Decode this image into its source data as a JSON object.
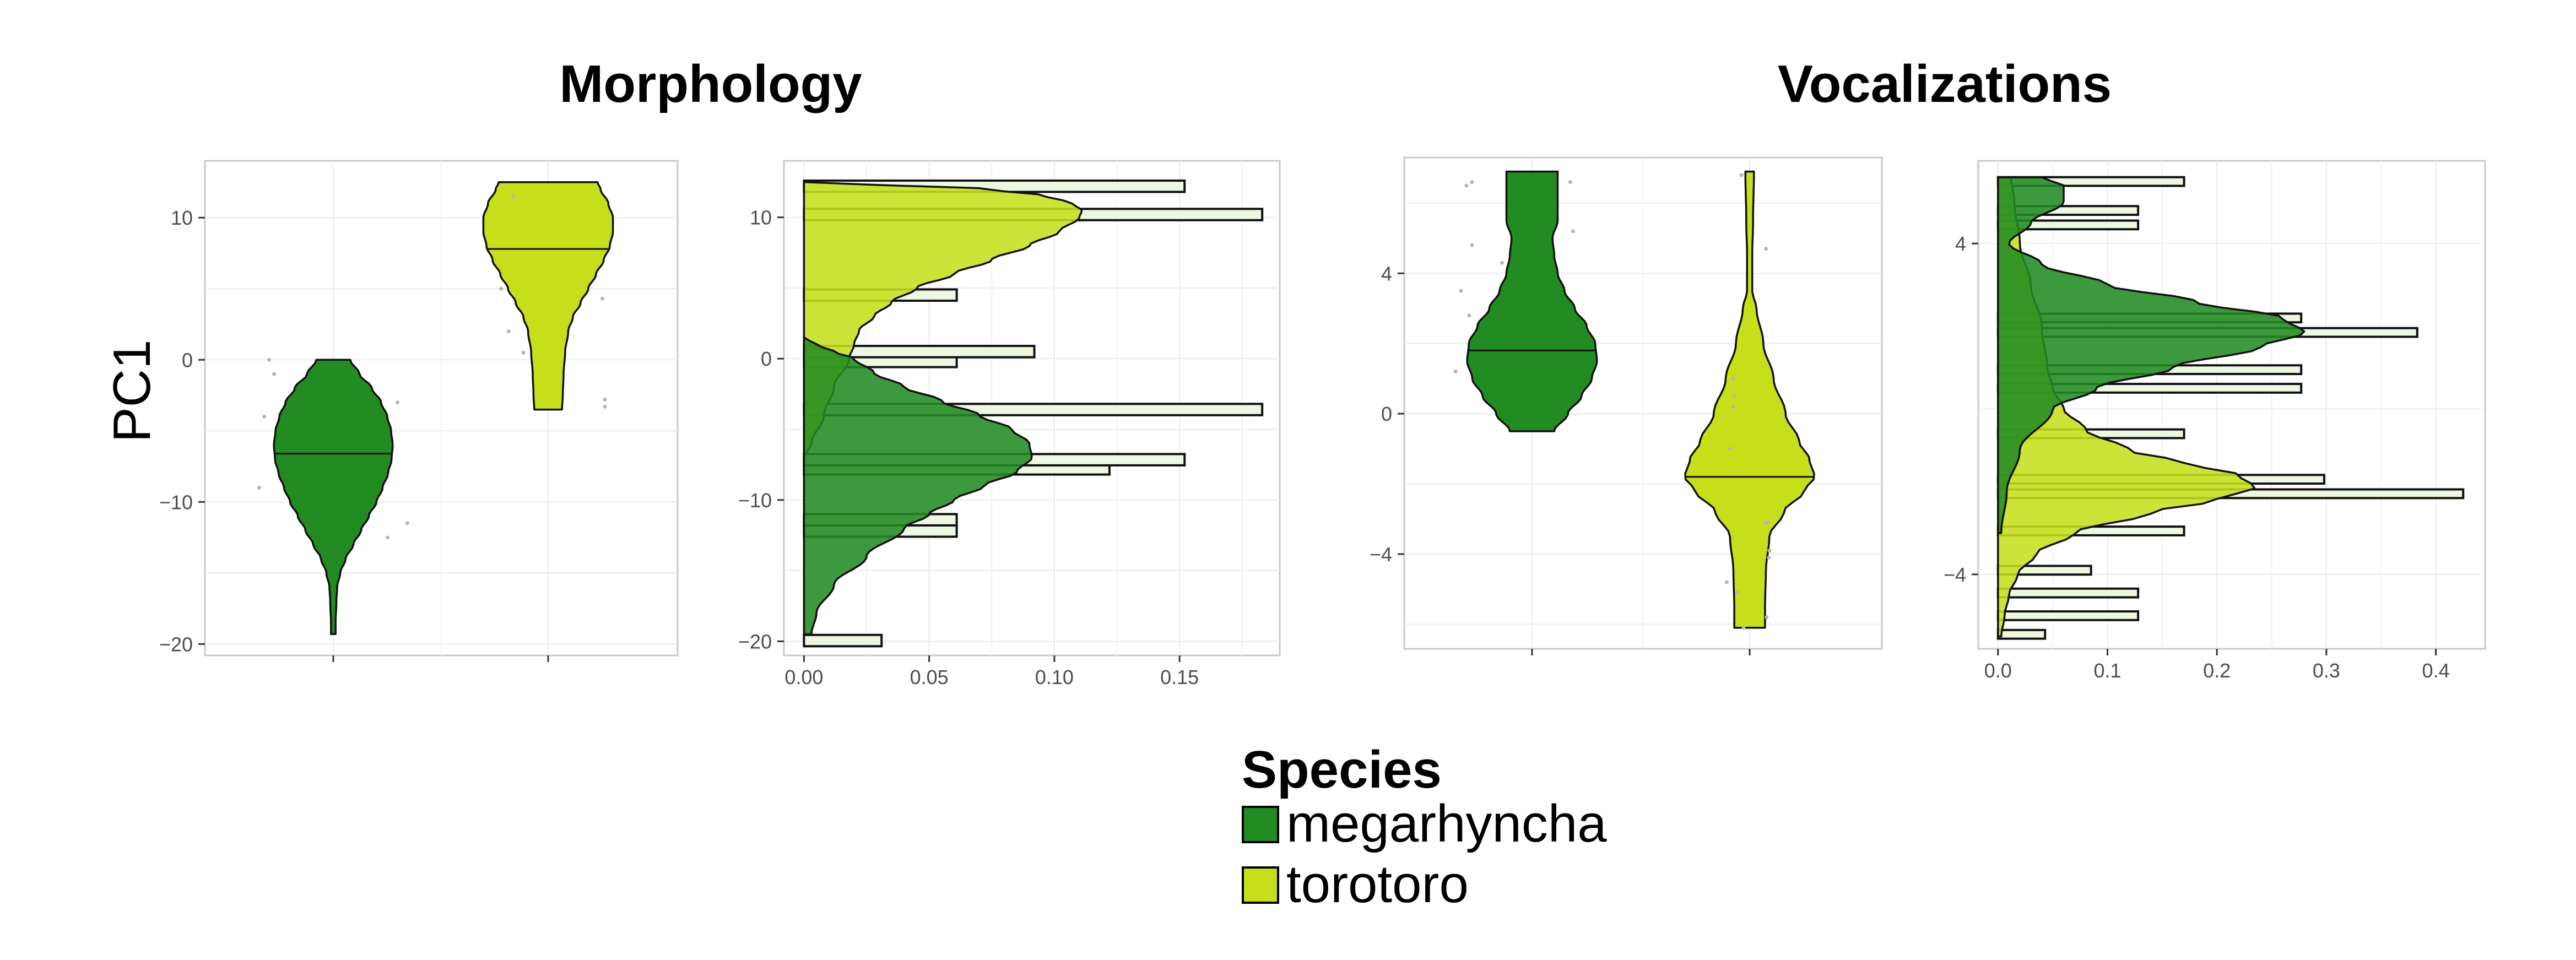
{
  "panel_titles": {
    "morphology": "Morphology",
    "vocalizations": "Vocalizations"
  },
  "y_label": "PC1",
  "legend": {
    "title": "Species",
    "items": [
      {
        "label": "megarhyncha",
        "color": "#228B22"
      },
      {
        "label": "torotoro",
        "color": "#C5E01B"
      }
    ]
  },
  "chart_data": [
    {
      "type": "violin",
      "panel": "Morphology",
      "ylabel": "PC1",
      "ylim": [
        -20.8,
        14
      ],
      "yticks": [
        -20,
        -10,
        0,
        10
      ],
      "ytick_labels": [
        "−20",
        "−10",
        "0",
        "10"
      ],
      "grid": true,
      "series": [
        {
          "name": "megarhyncha",
          "color": "#228B22",
          "median": -6.6,
          "range": [
            -19.3,
            0
          ],
          "profile": [
            [
              -19.3,
              0.15
            ],
            [
              -18.5,
              0.15
            ],
            [
              -17,
              0.2
            ],
            [
              -16,
              0.25
            ],
            [
              -15,
              0.45
            ],
            [
              -14,
              0.8
            ],
            [
              -13,
              1.3
            ],
            [
              -12,
              1.8
            ],
            [
              -11,
              2.3
            ],
            [
              -10,
              2.8
            ],
            [
              -9,
              3.2
            ],
            [
              -8,
              3.55
            ],
            [
              -7,
              3.78
            ],
            [
              -6,
              3.85
            ],
            [
              -5,
              3.75
            ],
            [
              -4,
              3.5
            ],
            [
              -3,
              3.1
            ],
            [
              -2,
              2.5
            ],
            [
              -1,
              1.7
            ],
            [
              0,
              1.1
            ]
          ],
          "points": [
            [
              -9,
              -1.5
            ],
            [
              -4,
              -1.4
            ],
            [
              -1,
              -1.2
            ],
            [
              0,
              -1.3
            ],
            [
              -12.5,
              1.1
            ],
            [
              -11.5,
              1.5
            ],
            [
              -3,
              1.3
            ]
          ]
        },
        {
          "name": "torotoro",
          "color": "#C5E01B",
          "median": 7.8,
          "range": [
            -3.5,
            12.5
          ],
          "profile": [
            [
              -3.5,
              0.9
            ],
            [
              -2.5,
              0.95
            ],
            [
              -1,
              1.0
            ],
            [
              0.5,
              1.1
            ],
            [
              2,
              1.3
            ],
            [
              3,
              1.6
            ],
            [
              4,
              2.1
            ],
            [
              5,
              2.6
            ],
            [
              6,
              3.1
            ],
            [
              7,
              3.6
            ],
            [
              8,
              4.0
            ],
            [
              9,
              4.2
            ],
            [
              10,
              4.2
            ],
            [
              11,
              3.9
            ],
            [
              12,
              3.4
            ],
            [
              12.5,
              3.2
            ]
          ],
          "points": [
            [
              5,
              -0.95
            ],
            [
              2,
              -0.8
            ],
            [
              0.5,
              -0.5
            ],
            [
              11.5,
              -0.7
            ],
            [
              4.3,
              1.1
            ],
            [
              -2.8,
              1.15
            ],
            [
              -3.3,
              1.15
            ]
          ]
        }
      ]
    },
    {
      "type": "density-histogram",
      "panel": "Morphology",
      "xlim": [
        -0.008,
        0.19
      ],
      "xticks": [
        0,
        0.05,
        0.1,
        0.15
      ],
      "xtick_labels": [
        "0.00",
        "0.05",
        "0.10",
        "0.15"
      ],
      "ylim": [
        -21,
        14
      ],
      "yticks": [
        -20,
        -10,
        0,
        10
      ],
      "ytick_labels": [
        "−20",
        "−10",
        "0",
        "10"
      ],
      "grid": true,
      "bin_width": 0.8,
      "bars": [
        [
          -19.95,
          0.031
        ],
        [
          -12.2,
          0.061
        ],
        [
          -11.4,
          0.061
        ],
        [
          -7.8,
          0.122
        ],
        [
          -7.15,
          0.152
        ],
        [
          -3.6,
          0.183
        ],
        [
          -0.2,
          0.061
        ],
        [
          0.5,
          0.092
        ],
        [
          4.5,
          0.061
        ],
        [
          10.2,
          0.183
        ],
        [
          12.2,
          0.152
        ]
      ],
      "densities": [
        {
          "name": "torotoro",
          "color": "#C5E01B",
          "points": [
            [
              -7,
              0
            ],
            [
              -6,
              0.003
            ],
            [
              -4,
              0.008
            ],
            [
              -2,
              0.012
            ],
            [
              0,
              0.018
            ],
            [
              1,
              0.02
            ],
            [
              2,
              0.022
            ],
            [
              3,
              0.028
            ],
            [
              4,
              0.035
            ],
            [
              5,
              0.045
            ],
            [
              6,
              0.06
            ],
            [
              7,
              0.075
            ],
            [
              8,
              0.09
            ],
            [
              9,
              0.102
            ],
            [
              10,
              0.11
            ],
            [
              10.5,
              0.111
            ],
            [
              11,
              0.107
            ],
            [
              11.5,
              0.097
            ],
            [
              12,
              0.075
            ],
            [
              12.3,
              0.03
            ],
            [
              12.5,
              0
            ]
          ]
        },
        {
          "name": "megarhyncha",
          "color": "#228B22",
          "points": [
            [
              -19.5,
              0.003
            ],
            [
              -18,
              0.005
            ],
            [
              -16,
              0.012
            ],
            [
              -14,
              0.025
            ],
            [
              -12,
              0.04
            ],
            [
              -11,
              0.05
            ],
            [
              -10,
              0.06
            ],
            [
              -9,
              0.072
            ],
            [
              -8,
              0.085
            ],
            [
              -7,
              0.091
            ],
            [
              -6,
              0.09
            ],
            [
              -5,
              0.083
            ],
            [
              -4,
              0.07
            ],
            [
              -3,
              0.055
            ],
            [
              -2,
              0.04
            ],
            [
              -1,
              0.028
            ],
            [
              0,
              0.02
            ],
            [
              0.5,
              0.012
            ],
            [
              1,
              0.005
            ],
            [
              1.5,
              0
            ]
          ]
        }
      ]
    },
    {
      "type": "violin",
      "panel": "Vocalizations",
      "ylim": [
        -6.7,
        7.3
      ],
      "yticks": [
        -4,
        0,
        4
      ],
      "ytick_labels": [
        "−4",
        "0",
        "4"
      ],
      "grid": true,
      "series": [
        {
          "name": "megarhyncha",
          "color": "#228B22",
          "median": 1.8,
          "range": [
            -0.5,
            6.9
          ],
          "profile": [
            [
              -0.5,
              1.3
            ],
            [
              0,
              2.1
            ],
            [
              0.5,
              2.9
            ],
            [
              1,
              3.5
            ],
            [
              1.5,
              3.8
            ],
            [
              2,
              3.7
            ],
            [
              2.5,
              3.2
            ],
            [
              3,
              2.5
            ],
            [
              3.5,
              1.9
            ],
            [
              4,
              1.5
            ],
            [
              4.5,
              1.3
            ],
            [
              5,
              1.2
            ],
            [
              5.5,
              1.5
            ],
            [
              6,
              1.5
            ],
            [
              6.5,
              1.5
            ],
            [
              6.9,
              1.5
            ]
          ],
          "points": [
            [
              6.5,
              -1.2
            ],
            [
              6.6,
              -1.1
            ],
            [
              4.8,
              -1.1
            ],
            [
              3.5,
              -1.3
            ],
            [
              2.8,
              -1.15
            ],
            [
              4.3,
              -0.55
            ],
            [
              1.2,
              -1.4
            ],
            [
              6.6,
              0.7
            ],
            [
              5.2,
              0.75
            ]
          ]
        },
        {
          "name": "torotoro",
          "color": "#C5E01B",
          "median": -1.8,
          "range": [
            -6.1,
            6.9
          ],
          "profile": [
            [
              -6.1,
              0.9
            ],
            [
              -5.5,
              0.9
            ],
            [
              -4.5,
              0.95
            ],
            [
              -3.5,
              1.15
            ],
            [
              -2.8,
              2.0
            ],
            [
              -2.2,
              3.2
            ],
            [
              -1.8,
              3.8
            ],
            [
              -1.3,
              3.5
            ],
            [
              -0.8,
              2.9
            ],
            [
              0,
              2.1
            ],
            [
              1,
              1.4
            ],
            [
              2,
              0.8
            ],
            [
              3,
              0.4
            ],
            [
              3.5,
              0.15
            ],
            [
              4.5,
              0.15
            ],
            [
              5.5,
              0.2
            ],
            [
              6.9,
              0.25
            ]
          ],
          "points": [
            [
              6.8,
              -0.15
            ],
            [
              1,
              -0.3
            ],
            [
              0.5,
              -0.28
            ],
            [
              0.2,
              -0.3
            ],
            [
              -1,
              -0.36
            ],
            [
              -4.8,
              -0.42
            ],
            [
              -5.1,
              -0.22
            ],
            [
              -6.1,
              -0.11
            ],
            [
              4.7,
              0.3
            ],
            [
              -3.1,
              0.3
            ],
            [
              -3.1,
              0.33
            ],
            [
              -3.9,
              0.36
            ],
            [
              -4.1,
              0.35
            ],
            [
              -5.8,
              0.31
            ]
          ]
        }
      ]
    },
    {
      "type": "density-histogram",
      "panel": "Vocalizations",
      "xlim": [
        -0.018,
        0.445
      ],
      "xticks": [
        0,
        0.1,
        0.2,
        0.3,
        0.4
      ],
      "xtick_labels": [
        "0.0",
        "0.1",
        "0.2",
        "0.3",
        "0.4"
      ],
      "ylim": [
        -5.8,
        6.0
      ],
      "yticks": [
        -4,
        4
      ],
      "ytick_labels": [
        "−4",
        "4"
      ],
      "grid": true,
      "bin_width": 0.21,
      "bars": [
        [
          -5.45,
          0.043
        ],
        [
          -5.0,
          0.128
        ],
        [
          -4.45,
          0.128
        ],
        [
          -3.9,
          0.085
        ],
        [
          -2.95,
          0.17
        ],
        [
          -2.05,
          0.425
        ],
        [
          -1.7,
          0.298
        ],
        [
          -0.6,
          0.17
        ],
        [
          0.5,
          0.277
        ],
        [
          0.95,
          0.277
        ],
        [
          1.85,
          0.383
        ],
        [
          2.2,
          0.277
        ],
        [
          4.45,
          0.128
        ],
        [
          4.8,
          0.128
        ],
        [
          5.5,
          0.17
        ]
      ],
      "densities": [
        {
          "name": "torotoro",
          "color": "#C5E01B",
          "points": [
            [
              -5.5,
              0.003
            ],
            [
              -5,
              0.006
            ],
            [
              -4.5,
              0.01
            ],
            [
              -4,
              0.018
            ],
            [
              -3.5,
              0.035
            ],
            [
              -3,
              0.07
            ],
            [
              -2.5,
              0.14
            ],
            [
              -2.2,
              0.2
            ],
            [
              -1.9,
              0.235
            ],
            [
              -1.6,
              0.22
            ],
            [
              -1.3,
              0.17
            ],
            [
              -1,
              0.12
            ],
            [
              -0.5,
              0.08
            ],
            [
              0,
              0.06
            ],
            [
              0.5,
              0.05
            ],
            [
              1,
              0.045
            ],
            [
              2,
              0.04
            ],
            [
              3,
              0.03
            ],
            [
              4,
              0.02
            ],
            [
              5,
              0.015
            ],
            [
              5.6,
              0.012
            ]
          ]
        },
        {
          "name": "megarhyncha",
          "color": "#228B22",
          "points": [
            [
              -3,
              0.003
            ],
            [
              -2,
              0.008
            ],
            [
              -1,
              0.02
            ],
            [
              0,
              0.05
            ],
            [
              0.5,
              0.09
            ],
            [
              1,
              0.16
            ],
            [
              1.5,
              0.24
            ],
            [
              1.85,
              0.28
            ],
            [
              2.2,
              0.26
            ],
            [
              2.6,
              0.18
            ],
            [
              3,
              0.1
            ],
            [
              3.5,
              0.04
            ],
            [
              4,
              0.01
            ],
            [
              4.5,
              0.03
            ],
            [
              5,
              0.06
            ],
            [
              5.4,
              0.06
            ],
            [
              5.6,
              0.04
            ]
          ]
        }
      ]
    }
  ]
}
